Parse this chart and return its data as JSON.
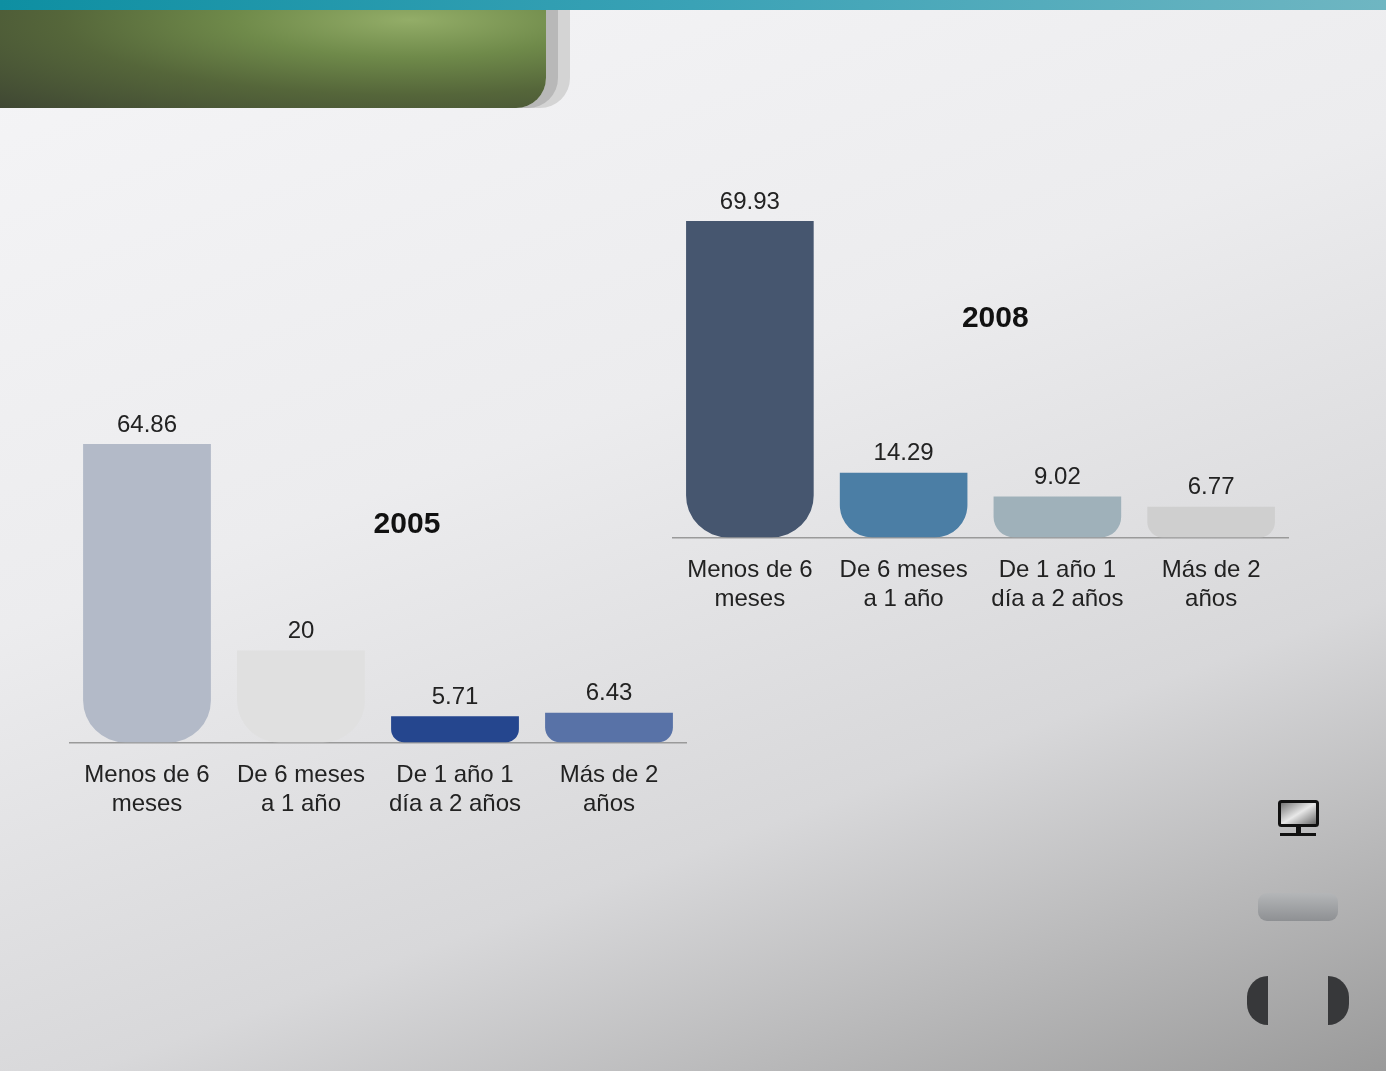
{
  "chart_data": [
    {
      "type": "bar",
      "title": "2005",
      "categories": [
        "Menos de 6 meses",
        "De 6 meses a 1 año",
        "De 1 año 1 día a 2 años",
        "Más de 2 años"
      ],
      "values": [
        64.86,
        20,
        5.71,
        6.43
      ],
      "colors": [
        "#b3bac8",
        "#e0e0e0",
        "#25468e",
        "#5872a7"
      ],
      "data_labels": true
    },
    {
      "type": "bar",
      "title": "2008",
      "categories": [
        "Menos de 6 meses",
        "De 6 meses a 1 año",
        "De 1 año 1 día a 2 años",
        "Más de 2 años"
      ],
      "values": [
        69.93,
        14.29,
        9.02,
        6.77
      ],
      "colors": [
        "#46566f",
        "#4b7ea5",
        "#9fb1ba",
        "#cfcfcf"
      ],
      "data_labels": true
    }
  ]
}
